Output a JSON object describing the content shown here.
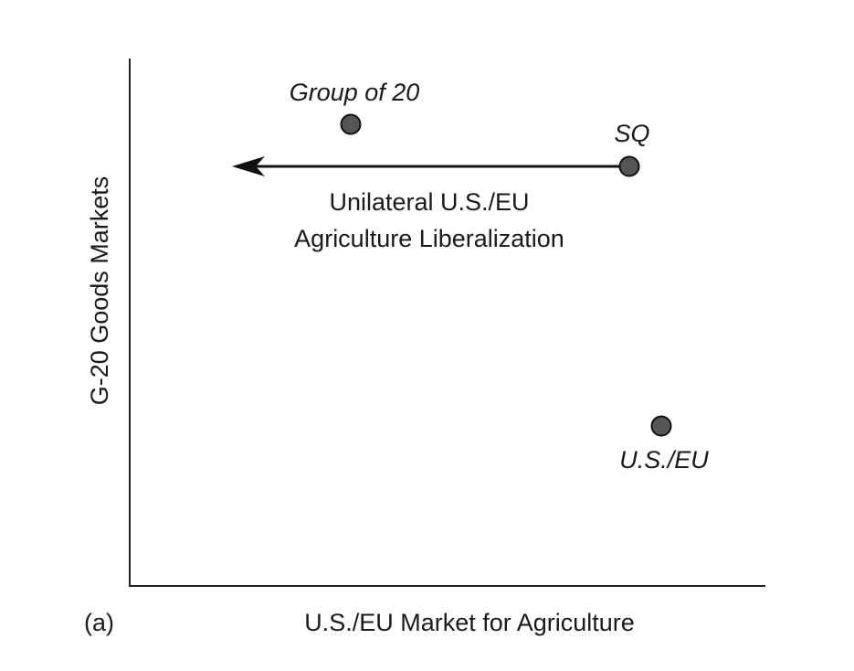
{
  "figure": {
    "panel_label": "(a)",
    "x_axis_title": "U.S./EU Market for Agriculture",
    "y_axis_title": "G-20 Goods Markets",
    "marker_color": "#555555"
  },
  "points": [
    {
      "id": "group-of-20",
      "label": "Group of 20"
    },
    {
      "id": "sq",
      "label": "SQ"
    },
    {
      "id": "us-eu",
      "label": "U.S./EU"
    }
  ],
  "arrow": {
    "direction": "left",
    "label_line1": "Unilateral U.S./EU",
    "label_line2": "Agriculture Liberalization"
  }
}
